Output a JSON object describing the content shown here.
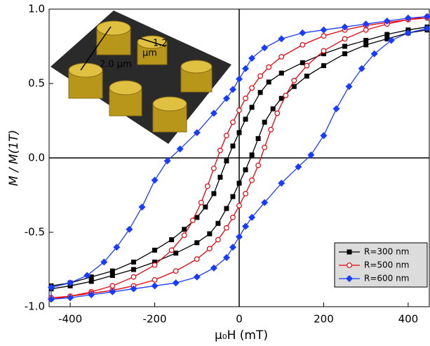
{
  "chart_data": {
    "type": "line",
    "x_label": "μ₀H (mT)",
    "y_label": "M / M(1T)",
    "xlim": [
      -450,
      450
    ],
    "ylim": [
      -1,
      1
    ],
    "xticks": [
      -400,
      -200,
      0,
      200,
      400
    ],
    "yticks": [
      {
        "value": -1,
        "label": "-1.0"
      },
      -0.5,
      {
        "value": 0,
        "label": "0.0"
      },
      0.5,
      {
        "value": 1,
        "label": "1.0"
      }
    ],
    "annotations": [
      "2.0 μm",
      "1.2",
      "μm"
    ],
    "legend": "lower right",
    "series": [
      {
        "name": "R=300 nm",
        "color": "#000000",
        "marker": "square",
        "x": [
          445,
          400,
          350,
          300,
          250,
          200,
          150,
          100,
          70,
          50,
          30,
          15,
          0,
          -15,
          -30,
          -45,
          -60,
          -80,
          -100,
          -130,
          -160,
          -200,
          -250,
          -300,
          -350,
          -400,
          -445,
          -445,
          -400,
          -350,
          -300,
          -250,
          -200,
          -150,
          -100,
          -70,
          -50,
          -30,
          -15,
          0,
          15,
          30,
          45,
          60,
          80,
          100,
          130,
          160,
          200,
          250,
          300,
          350,
          400,
          445
        ],
        "values": [
          0.88,
          0.86,
          0.83,
          0.79,
          0.75,
          0.7,
          0.64,
          0.57,
          0.51,
          0.44,
          0.34,
          0.26,
          0.17,
          0.08,
          -0.02,
          -0.13,
          -0.24,
          -0.33,
          -0.4,
          -0.48,
          -0.55,
          -0.62,
          -0.7,
          -0.76,
          -0.8,
          -0.84,
          -0.86,
          -0.88,
          -0.86,
          -0.83,
          -0.79,
          -0.75,
          -0.7,
          -0.64,
          -0.57,
          -0.51,
          -0.44,
          -0.34,
          -0.26,
          -0.17,
          -0.08,
          0.02,
          0.13,
          0.24,
          0.33,
          0.4,
          0.48,
          0.55,
          0.62,
          0.7,
          0.76,
          0.8,
          0.84,
          0.86
        ]
      },
      {
        "name": "R=500 nm",
        "color": "#e8000b",
        "marker": "circle",
        "x": [
          445,
          400,
          350,
          300,
          250,
          200,
          150,
          100,
          70,
          50,
          30,
          15,
          0,
          -15,
          -30,
          -45,
          -60,
          -75,
          -90,
          -110,
          -130,
          -160,
          -200,
          -250,
          -300,
          -350,
          -400,
          -445,
          -445,
          -400,
          -350,
          -300,
          -250,
          -200,
          -150,
          -100,
          -70,
          -50,
          -30,
          -15,
          0,
          15,
          30,
          45,
          60,
          75,
          90,
          110,
          130,
          160,
          200,
          250,
          300,
          350,
          400,
          445
        ],
        "values": [
          0.94,
          0.93,
          0.91,
          0.89,
          0.86,
          0.82,
          0.76,
          0.68,
          0.61,
          0.55,
          0.47,
          0.4,
          0.32,
          0.24,
          0.15,
          0.05,
          -0.07,
          -0.19,
          -0.3,
          -0.42,
          -0.52,
          -0.62,
          -0.72,
          -0.8,
          -0.86,
          -0.9,
          -0.93,
          -0.95,
          -0.94,
          -0.93,
          -0.91,
          -0.89,
          -0.86,
          -0.82,
          -0.76,
          -0.68,
          -0.61,
          -0.55,
          -0.47,
          -0.4,
          -0.32,
          -0.24,
          -0.15,
          -0.05,
          0.07,
          0.19,
          0.3,
          0.42,
          0.52,
          0.62,
          0.72,
          0.8,
          0.86,
          0.9,
          0.93,
          0.95
        ]
      },
      {
        "name": "R=600 nm",
        "color": "#1a3cff",
        "marker": "diamond",
        "x": [
          445,
          400,
          350,
          300,
          250,
          200,
          150,
          100,
          60,
          30,
          15,
          0,
          -15,
          -30,
          -60,
          -100,
          -140,
          -170,
          -200,
          -230,
          -260,
          -290,
          -320,
          -360,
          -400,
          -445,
          -445,
          -400,
          -350,
          -300,
          -250,
          -200,
          -150,
          -100,
          -60,
          -30,
          -15,
          0,
          15,
          30,
          60,
          100,
          140,
          170,
          200,
          230,
          260,
          290,
          320,
          360,
          400,
          445
        ],
        "values": [
          0.95,
          0.94,
          0.92,
          0.9,
          0.88,
          0.86,
          0.84,
          0.8,
          0.74,
          0.67,
          0.6,
          0.53,
          0.46,
          0.4,
          0.3,
          0.17,
          0.06,
          -0.02,
          -0.15,
          -0.33,
          -0.48,
          -0.6,
          -0.7,
          -0.79,
          -0.84,
          -0.87,
          -0.95,
          -0.94,
          -0.92,
          -0.9,
          -0.88,
          -0.86,
          -0.84,
          -0.8,
          -0.74,
          -0.67,
          -0.6,
          -0.53,
          -0.46,
          -0.4,
          -0.3,
          -0.17,
          -0.06,
          0.02,
          0.15,
          0.33,
          0.48,
          0.6,
          0.7,
          0.79,
          0.84,
          0.87
        ]
      }
    ]
  }
}
